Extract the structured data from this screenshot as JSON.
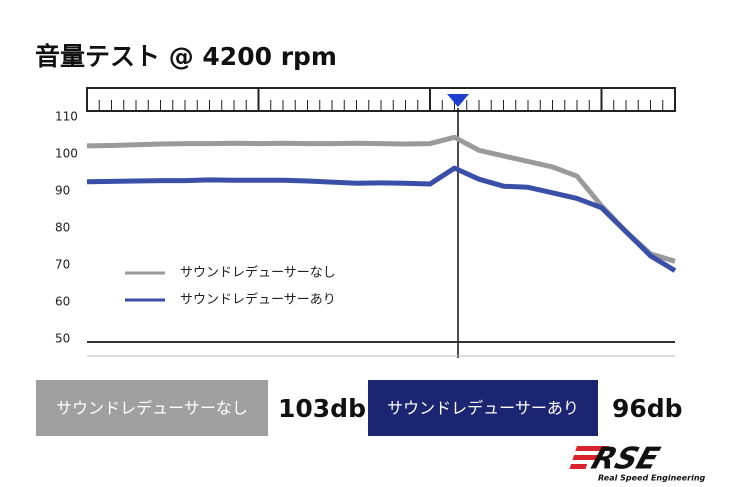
{
  "chart_data": {
    "type": "line",
    "title": "音量テスト @ 4200 rpm",
    "series": [
      {
        "name": "サウンドレデューサーなし",
        "color": "#9a9a9a",
        "values": [
          102.2,
          102.3,
          102.5,
          102.7,
          102.8,
          102.8,
          102.9,
          102.8,
          102.9,
          102.8,
          102.8,
          102.9,
          102.8,
          102.7,
          102.8,
          104.5,
          101,
          99.5,
          98,
          96.5,
          94,
          86,
          79,
          73,
          71
        ]
      },
      {
        "name": "サウンドレデューサーあり",
        "color": "#3a4fa8",
        "values": [
          92.5,
          92.6,
          92.7,
          92.8,
          92.8,
          93,
          92.9,
          92.9,
          92.9,
          92.7,
          92.4,
          92.1,
          92.2,
          92.1,
          91.9,
          96.2,
          93.2,
          91.3,
          91,
          89.5,
          88,
          85.5,
          79,
          72.5,
          68.5
        ]
      }
    ],
    "ylim": [
      50,
      110
    ],
    "yticks": [
      50,
      60,
      70,
      80,
      90,
      100,
      110
    ],
    "legend": "left",
    "summary": [
      {
        "name": "サウンドレデューサーなし",
        "text": "103db",
        "color": "#a0a0a0"
      },
      {
        "name": "サウンドレデューサーあり",
        "text": "96db",
        "color": "#1c2572"
      }
    ],
    "logo": {
      "mark": "RSE",
      "tagline": "Real Speed Engineering"
    }
  }
}
